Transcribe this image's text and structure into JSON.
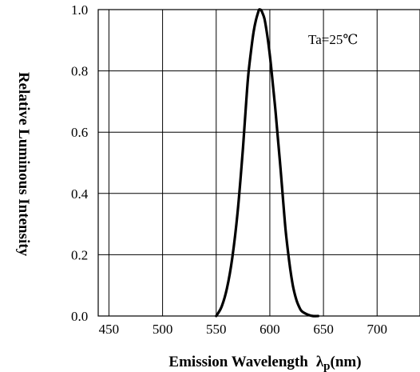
{
  "chart_data": {
    "type": "line",
    "title": "",
    "xlabel": "Emission Wavelength",
    "xlabel_symbol": "λ",
    "xlabel_symbol_sub": "p",
    "xlabel_unit": "(nm)",
    "ylabel": "Relative Luminous Intensity",
    "xlim": [
      440,
      740
    ],
    "ylim": [
      0,
      1.0
    ],
    "x_ticks": [
      450,
      500,
      550,
      600,
      650,
      700
    ],
    "x_tick_labels": [
      "450",
      "500",
      "550",
      "600",
      "650",
      "700"
    ],
    "y_ticks": [
      0,
      0.2,
      0.4,
      0.6,
      0.8,
      1.0
    ],
    "y_tick_labels": [
      "0.0",
      "0.2",
      "0.4",
      "0.6",
      "0.8",
      "1.0"
    ],
    "grid": true,
    "annotation": "Ta=25℃",
    "series": [
      {
        "x": [
          550,
          555,
          560,
          565,
          570,
          575,
          578,
          580,
          583,
          585,
          587,
          589,
          590,
          591,
          592,
          593,
          595,
          597,
          599,
          601,
          603,
          605,
          607,
          610,
          613,
          615,
          618,
          620,
          622,
          625,
          628,
          630,
          635,
          640,
          645
        ],
        "y": [
          0.0,
          0.03,
          0.09,
          0.19,
          0.34,
          0.55,
          0.7,
          0.79,
          0.88,
          0.93,
          0.965,
          0.99,
          1.0,
          1.0,
          0.998,
          0.99,
          0.97,
          0.93,
          0.88,
          0.82,
          0.75,
          0.68,
          0.6,
          0.48,
          0.35,
          0.27,
          0.18,
          0.13,
          0.09,
          0.05,
          0.025,
          0.015,
          0.005,
          0.0,
          0.0
        ]
      }
    ]
  }
}
